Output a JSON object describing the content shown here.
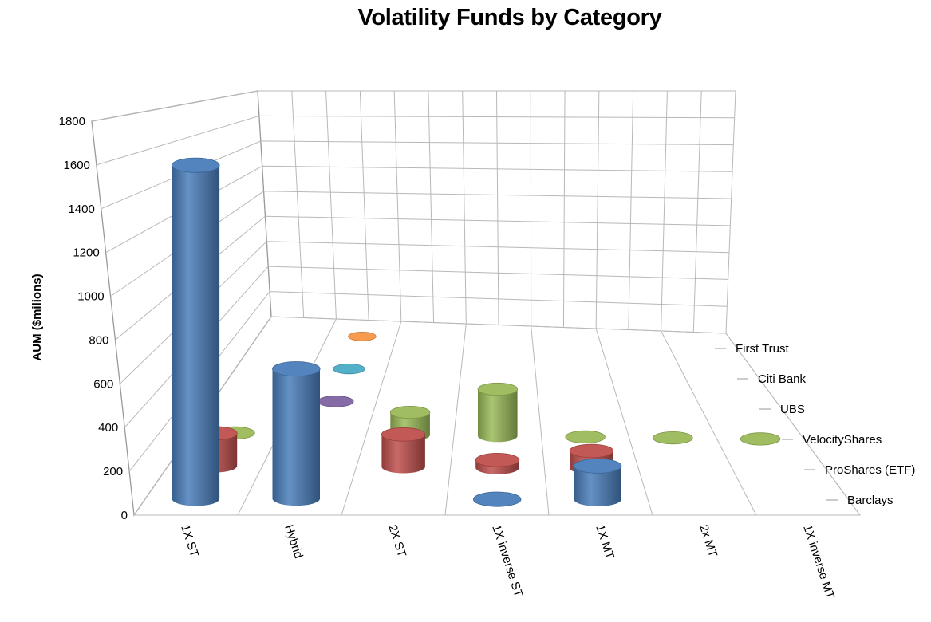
{
  "chart_data": {
    "type": "bar",
    "subtype": "3d-cylinder",
    "title": "Volatility Funds by Category",
    "xlabel": "",
    "ylabel": "AUM ($milions)",
    "ylim": [
      0,
      1800
    ],
    "yticks": [
      "0",
      "200",
      "400",
      "600",
      "800",
      "1000",
      "1200",
      "1400",
      "1600",
      "1800"
    ],
    "grid": true,
    "categories": [
      "1X ST",
      "Hybrid",
      "2X ST",
      "1X inverse ST",
      "1X MT",
      "2x MT",
      "1X inverse MT"
    ],
    "series": [
      {
        "name": "Barclays",
        "color": "#4a7ebb",
        "values": [
          1590,
          620,
          null,
          0,
          160,
          null,
          null
        ]
      },
      {
        "name": "ProShares (ETF)",
        "color": "#c0504d",
        "values": [
          170,
          null,
          170,
          40,
          90,
          null,
          null
        ]
      },
      {
        "name": "VelocityShares",
        "color": "#9bbb59",
        "values": [
          0,
          null,
          130,
          270,
          0,
          0,
          0
        ]
      },
      {
        "name": "UBS",
        "color": "#8064a2",
        "values": [
          null,
          0,
          null,
          null,
          null,
          null,
          null
        ]
      },
      {
        "name": "Citi Bank",
        "color": "#4bacc6",
        "values": [
          null,
          0,
          null,
          null,
          null,
          null,
          null
        ]
      },
      {
        "name": "First Trust",
        "color": "#f79646",
        "values": [
          null,
          0,
          null,
          null,
          null,
          null,
          null
        ]
      }
    ]
  }
}
